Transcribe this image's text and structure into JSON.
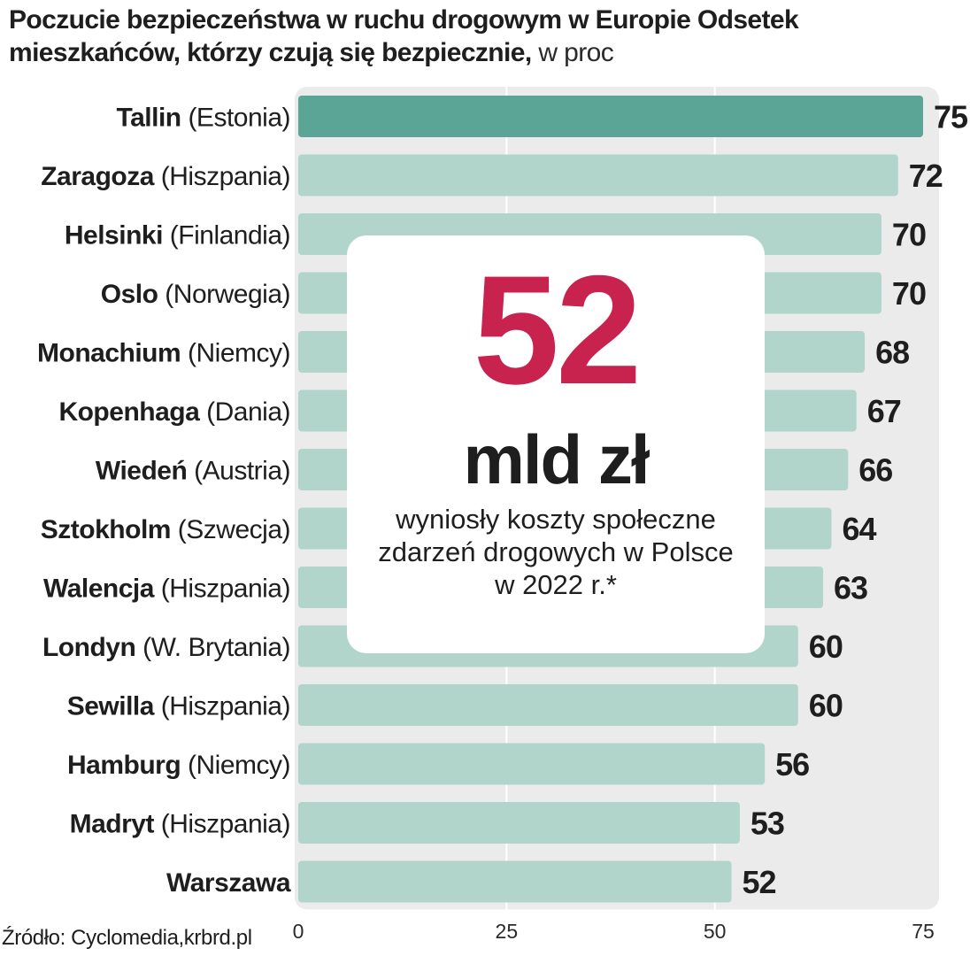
{
  "title_bold": "Poczucie bezpieczeństwa w ruchu drogowym w Europie  Odsetek mieszkańców, którzy czują się bezpiecznie,",
  "title_light": " w proc",
  "callout": {
    "number": "52",
    "unit": "mld zł",
    "description": "wyniosły koszty społeczne zdarzeń drogowych w Polsce w 2022 r.*"
  },
  "source": "Źródło: Cyclomedia,krbrd.pl",
  "colors": {
    "highlight_bar": "#5ba596",
    "bar": "#b1d5cb",
    "plot_bg": "#ebebeb",
    "gridline": "#ffffff",
    "callout_number": "#c8234e"
  },
  "chart_data": {
    "type": "bar",
    "orientation": "horizontal",
    "title": "Poczucie bezpieczeństwa w ruchu drogowym w Europie  Odsetek mieszkańców, którzy czują się bezpiecznie, w proc",
    "xlim": [
      0,
      75
    ],
    "ticks": [
      0,
      25,
      50,
      75
    ],
    "grid": true,
    "categories": [
      {
        "city": "Tallin",
        "country": " (Estonia)",
        "value": 75,
        "highlight": true
      },
      {
        "city": "Zaragoza",
        "country": " (Hiszpania)",
        "value": 72
      },
      {
        "city": "Helsinki",
        "country": " (Finlandia)",
        "value": 70
      },
      {
        "city": "Oslo",
        "country": " (Norwegia)",
        "value": 70
      },
      {
        "city": "Monachium",
        "country": " (Niemcy)",
        "value": 68
      },
      {
        "city": "Kopenhaga",
        "country": " (Dania)",
        "value": 67
      },
      {
        "city": "Wiedeń",
        "country": " (Austria)",
        "value": 66
      },
      {
        "city": "Sztokholm",
        "country": " (Szwecja)",
        "value": 64
      },
      {
        "city": "Walencja",
        "country": " (Hiszpania)",
        "value": 63
      },
      {
        "city": "Londyn",
        "country": " (W. Brytania)",
        "value": 60
      },
      {
        "city": "Sewilla",
        "country": " (Hiszpania)",
        "value": 60
      },
      {
        "city": "Hamburg",
        "country": " (Niemcy)",
        "value": 56
      },
      {
        "city": "Madryt",
        "country": " (Hiszpania)",
        "value": 53
      },
      {
        "city": "Warszawa",
        "country": "",
        "value": 52
      }
    ]
  }
}
